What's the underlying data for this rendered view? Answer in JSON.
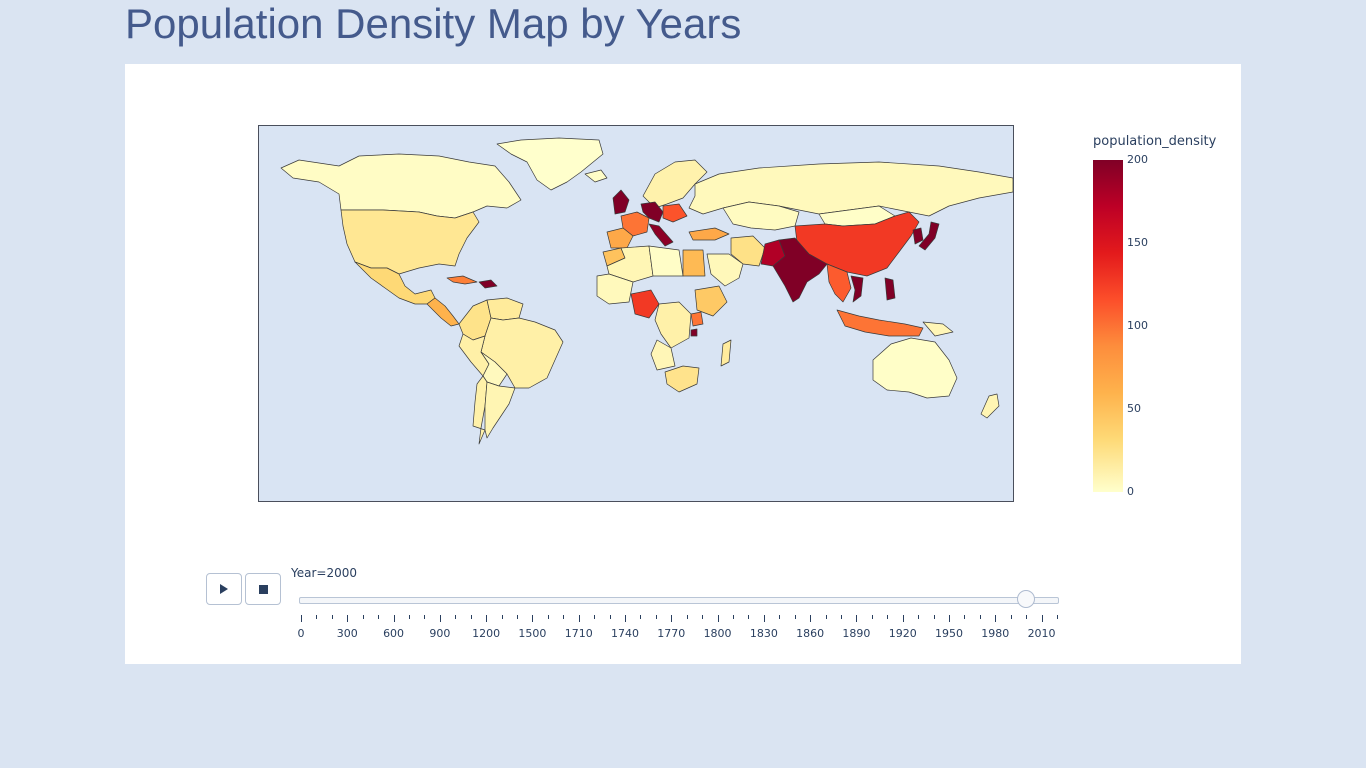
{
  "page": {
    "title": "Population Density Map by Years"
  },
  "colorbar": {
    "title": "population_density",
    "ticks": [
      "200",
      "150",
      "100",
      "50",
      "0"
    ],
    "range": [
      0,
      200
    ],
    "colors": [
      "#ffffcc",
      "#ffeda0",
      "#fed976",
      "#feb24c",
      "#fd8d3c",
      "#fc4e2a",
      "#e31a1c",
      "#bd0026",
      "#800026"
    ]
  },
  "controls": {
    "play_icon": "play-icon",
    "stop_icon": "stop-icon"
  },
  "slider": {
    "label": "Year=2000",
    "current_index": 47,
    "tick_labels": [
      "0",
      "300",
      "600",
      "900",
      "1200",
      "1500",
      "1710",
      "1740",
      "1770",
      "1800",
      "1830",
      "1860",
      "1890",
      "1920",
      "1950",
      "1980",
      "2010"
    ],
    "total_steps": 50
  },
  "map": {
    "projection": "equirectangular",
    "countries": [
      {
        "name": "Canada",
        "density": 4
      },
      {
        "name": "Greenland",
        "density": 0
      },
      {
        "name": "United States",
        "density": 33
      },
      {
        "name": "Mexico",
        "density": 50
      },
      {
        "name": "Central America",
        "density": 75
      },
      {
        "name": "Cuba",
        "density": 105
      },
      {
        "name": "Haiti",
        "density": 300
      },
      {
        "name": "Colombia",
        "density": 38
      },
      {
        "name": "Venezuela",
        "density": 28
      },
      {
        "name": "Brazil",
        "density": 21
      },
      {
        "name": "Peru",
        "density": 21
      },
      {
        "name": "Bolivia",
        "density": 8
      },
      {
        "name": "Argentina",
        "density": 14
      },
      {
        "name": "Chile",
        "density": 20
      },
      {
        "name": "Iceland",
        "density": 3
      },
      {
        "name": "United Kingdom",
        "density": 245
      },
      {
        "name": "France",
        "density": 110
      },
      {
        "name": "Spain",
        "density": 82
      },
      {
        "name": "Germany",
        "density": 230
      },
      {
        "name": "Italy",
        "density": 195
      },
      {
        "name": "Poland",
        "density": 123
      },
      {
        "name": "Scandinavia",
        "density": 18
      },
      {
        "name": "Russia",
        "density": 9
      },
      {
        "name": "Kazakhstan",
        "density": 6
      },
      {
        "name": "Mongolia",
        "density": 2
      },
      {
        "name": "China",
        "density": 135
      },
      {
        "name": "India",
        "density": 340
      },
      {
        "name": "Pakistan",
        "density": 180
      },
      {
        "name": "Iran",
        "density": 40
      },
      {
        "name": "Saudi Arabia",
        "density": 10
      },
      {
        "name": "Turkey",
        "density": 82
      },
      {
        "name": "Egypt",
        "density": 70
      },
      {
        "name": "Morocco",
        "density": 65
      },
      {
        "name": "Algeria",
        "density": 13
      },
      {
        "name": "Libya",
        "density": 3
      },
      {
        "name": "Mali",
        "density": 9
      },
      {
        "name": "Nigeria",
        "density": 135
      },
      {
        "name": "Ethiopia",
        "density": 60
      },
      {
        "name": "Uganda",
        "density": 110
      },
      {
        "name": "Rwanda",
        "density": 320
      },
      {
        "name": "DR Congo",
        "density": 20
      },
      {
        "name": "Angola",
        "density": 12
      },
      {
        "name": "South Africa",
        "density": 37
      },
      {
        "name": "Madagascar",
        "density": 27
      },
      {
        "name": "Japan",
        "density": 340
      },
      {
        "name": "Korea",
        "density": 400
      },
      {
        "name": "Southeast Asia",
        "density": 120
      },
      {
        "name": "Vietnam",
        "density": 230
      },
      {
        "name": "Philippines",
        "density": 255
      },
      {
        "name": "Indonesia",
        "density": 110
      },
      {
        "name": "Papua New Guinea",
        "density": 12
      },
      {
        "name": "Australia",
        "density": 2
      },
      {
        "name": "New Zealand",
        "density": 14
      }
    ]
  }
}
